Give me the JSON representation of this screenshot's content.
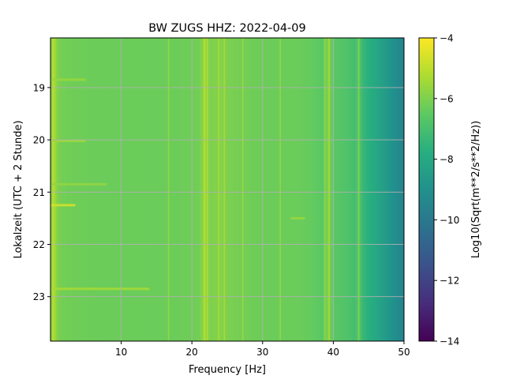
{
  "chart_data": {
    "type": "heatmap",
    "title": "BW ZUGS  HHZ: 2022-04-09",
    "xlabel": "Frequency [Hz]",
    "ylabel": "Lokalzeit (UTC + 2 Stunde)",
    "colorbar_label": "Log10(Sqrt(m**2/s**2/Hz))",
    "xlim": [
      0,
      50
    ],
    "ylim": [
      18.05,
      23.85
    ],
    "y_inverted": true,
    "x_ticks": [
      10,
      20,
      30,
      40,
      50
    ],
    "x_tick_labels": [
      "10",
      "20",
      "30",
      "40",
      "50"
    ],
    "y_ticks": [
      19,
      20,
      21,
      22,
      23
    ],
    "y_tick_labels": [
      "19",
      "20",
      "21",
      "22",
      "23"
    ],
    "colorbar_range": [
      -14,
      -4
    ],
    "colorbar_ticks": [
      -14,
      -12,
      -10,
      -8,
      -6,
      -4
    ],
    "colorbar_tick_labels": [
      "−14",
      "−12",
      "−10",
      "−8",
      "−6",
      "−4"
    ],
    "colormap": "viridis",
    "grid": true,
    "frequency_profile": {
      "frequency_hz": [
        0,
        0.3,
        0.6,
        0.9,
        1.3,
        2,
        4,
        8,
        12,
        15,
        17,
        19,
        21,
        21.8,
        22.5,
        24,
        26,
        29,
        32,
        35,
        37,
        38.5,
        39.3,
        40,
        41,
        42.5,
        43,
        43.6,
        44.2,
        45,
        46,
        47,
        48,
        49,
        50
      ],
      "log10_amplitude": [
        -6.3,
        -5.0,
        -5.4,
        -5.9,
        -6.1,
        -6.2,
        -6.25,
        -6.3,
        -6.3,
        -6.3,
        -6.3,
        -6.25,
        -6.2,
        -5.6,
        -6.0,
        -5.9,
        -6.1,
        -6.25,
        -6.3,
        -6.3,
        -6.4,
        -6.6,
        -5.9,
        -6.6,
        -6.7,
        -6.9,
        -7.1,
        -6.6,
        -7.4,
        -7.7,
        -8.0,
        -8.4,
        -8.8,
        -9.2,
        -9.6
      ]
    },
    "narrow_lines_hz": [
      16.7,
      21.8,
      22.2,
      23.8,
      24.6,
      27.2,
      32.5,
      38.8,
      39.4,
      43.6
    ],
    "time_events": [
      {
        "time": 18.85,
        "freq_range": [
          0,
          5
        ],
        "level": -5.6
      },
      {
        "time": 20.02,
        "freq_range": [
          0,
          5
        ],
        "level": -5.5
      },
      {
        "time": 20.85,
        "freq_range": [
          0,
          8
        ],
        "level": -5.7
      },
      {
        "time": 21.25,
        "freq_range": [
          0,
          3.5
        ],
        "level": -4.7
      },
      {
        "time": 21.5,
        "freq_range": [
          34,
          36
        ],
        "level": -5.6
      },
      {
        "time": 22.85,
        "freq_range": [
          0,
          14
        ],
        "level": -5.4
      }
    ]
  }
}
